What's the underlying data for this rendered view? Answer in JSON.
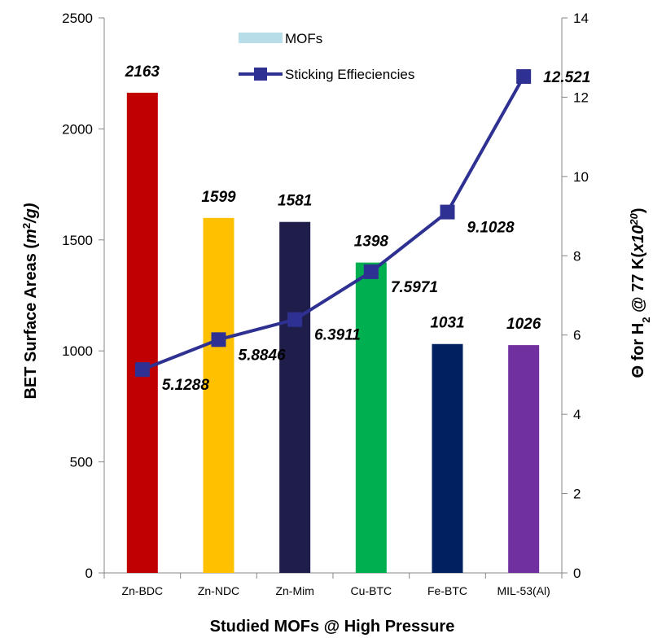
{
  "chart_data": {
    "type": "bar",
    "categories": [
      "Zn-BDC",
      "Zn-NDC",
      "Zn-Mim",
      "Cu-BTC",
      "Fe-BTC",
      "MIL-53(Al)"
    ],
    "series": [
      {
        "name": "MOFs",
        "kind": "bar",
        "axis": "left",
        "values": [
          2163,
          1599,
          1581,
          1398,
          1031,
          1026
        ],
        "labels": [
          "2163",
          "1599",
          "1581",
          "1398",
          "1031",
          "1026"
        ],
        "colors": [
          "#c00000",
          "#ffc000",
          "#1f1d4a",
          "#00b050",
          "#002060",
          "#7030a0"
        ]
      },
      {
        "name": "Sticking Effieciencies",
        "kind": "line",
        "axis": "right",
        "values": [
          5.1288,
          5.8846,
          6.3911,
          7.5971,
          9.1028,
          12.521
        ],
        "labels": [
          "5.1288",
          "5.8846",
          "6.3911",
          "7.5971",
          "9.1028",
          "12.521"
        ],
        "color": "#2e3192"
      }
    ],
    "xlabel": "Studied MOFs @ High Pressure",
    "ylabel_left": {
      "parts": [
        {
          "text": "BET Surface Areas (",
          "italic": false,
          "sup": false
        },
        {
          "text": "m",
          "italic": true,
          "sup": false
        },
        {
          "text": "2",
          "italic": false,
          "sup": true
        },
        {
          "text": "/g)",
          "italic": true,
          "sup": false
        }
      ]
    },
    "ylabel_right": {
      "parts": [
        {
          "text": "Θ for H",
          "italic": false,
          "sub": false
        },
        {
          "text": "2",
          "italic": false,
          "sub": true
        },
        {
          "text": " @ 77 K(",
          "italic": false,
          "sub": false
        },
        {
          "text": "x10",
          "italic": true,
          "sub": false
        },
        {
          "text": "20",
          "italic": true,
          "sup": true
        },
        {
          "text": ")",
          "italic": false,
          "sub": false
        }
      ]
    },
    "ylim_left": [
      0,
      2500
    ],
    "yticks_left": [
      "0",
      "500",
      "1000",
      "1500",
      "2000",
      "2500"
    ],
    "ylim_right": [
      0,
      14
    ],
    "yticks_right": [
      "0",
      "2",
      "4",
      "6",
      "8",
      "10",
      "12",
      "14"
    ],
    "legend": {
      "placement": "top-center",
      "entries": [
        {
          "label": "MOFs",
          "swatch_color": "#b7dde8"
        },
        {
          "label": "Sticking Effieciencies",
          "swatch_color": "#2e3192"
        }
      ]
    },
    "grid": false
  }
}
